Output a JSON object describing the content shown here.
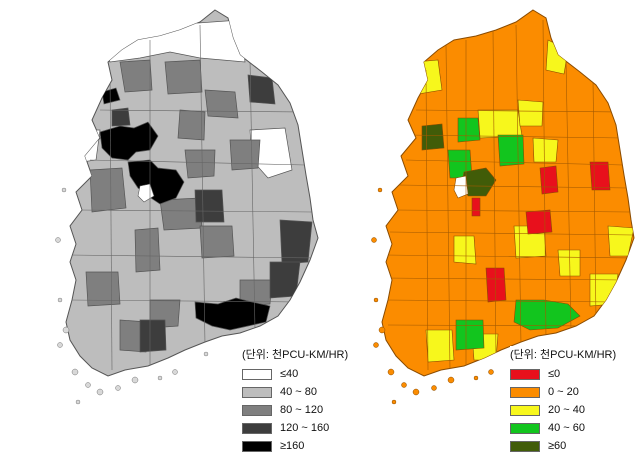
{
  "left_map": {
    "legend": {
      "title": "(단위: 천PCU-KM/HR)",
      "items": [
        {
          "label": "≤40",
          "color": "#ffffff"
        },
        {
          "label": "40 ~ 80",
          "color": "#bdbdbd"
        },
        {
          "label": "80 ~ 120",
          "color": "#7f7f7f"
        },
        {
          "label": "120 ~ 160",
          "color": "#3d3d3d"
        },
        {
          "label": "≥160",
          "color": "#000000"
        }
      ]
    }
  },
  "right_map": {
    "legend": {
      "title": "(단위: 천PCU-KM/HR)",
      "items": [
        {
          "label": "≤0",
          "color": "#e8101c"
        },
        {
          "label": "0 ~ 20",
          "color": "#fb8c00"
        },
        {
          "label": "20 ~ 40",
          "color": "#f7f71c"
        },
        {
          "label": "40 ~ 60",
          "color": "#12c51e"
        },
        {
          "label": "≥60",
          "color": "#415c08"
        }
      ]
    }
  }
}
